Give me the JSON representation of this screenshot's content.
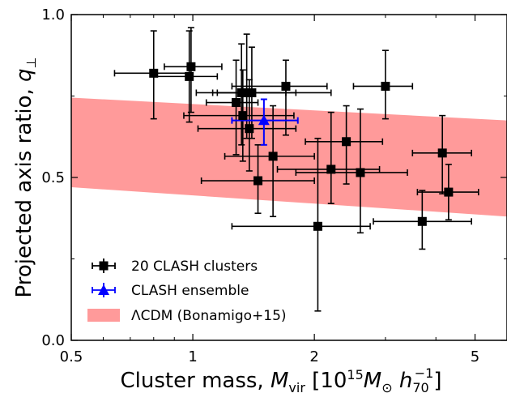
{
  "chart_data": {
    "type": "scatter",
    "xscale": "log",
    "xlim": [
      0.5,
      6.0
    ],
    "ylim": [
      0.0,
      1.0
    ],
    "xticks": [
      {
        "value": 0.5,
        "label": "0.5"
      },
      {
        "value": 1,
        "label": "1"
      },
      {
        "value": 2,
        "label": "2"
      },
      {
        "value": 5,
        "label": "5"
      }
    ],
    "yticks": [
      {
        "value": 0.0,
        "label": "0.0"
      },
      {
        "value": 0.5,
        "label": "0.5"
      },
      {
        "value": 1.0,
        "label": "1.0"
      }
    ],
    "xlabel": {
      "prefix": "Cluster mass, ",
      "var": "M",
      "var_sub": "vir",
      "units_open": " [10",
      "units_exp": "15",
      "units_m": "M",
      "units_msub": "⊙",
      "units_h": " h",
      "units_hsub": "70",
      "units_hsup": "−1",
      "units_close": "]"
    },
    "ylabel": {
      "prefix": "Projected axis ratio, ",
      "var": "q",
      "var_sub": "⊥"
    },
    "legend": {
      "placement": "lower-left",
      "entries": [
        {
          "label": "20 CLASH clusters",
          "marker": "square",
          "color": "#000000"
        },
        {
          "label": "CLASH ensemble",
          "marker": "triangle",
          "color": "#0000ff"
        },
        {
          "label": "ΛCDM (Bonamigo+15)",
          "marker": "band",
          "color": "#ff9a9a"
        }
      ]
    },
    "band": {
      "name": "ΛCDM (Bonamigo+15)",
      "color": "#ff9a9a",
      "x": [
        0.5,
        6.0
      ],
      "lower": [
        0.47,
        0.38
      ],
      "upper": [
        0.745,
        0.675
      ]
    },
    "series": [
      {
        "name": "20 CLASH clusters",
        "color": "#000000",
        "marker": "square",
        "points": [
          {
            "x": 0.8,
            "y": 0.82,
            "xerr": [
              0.64,
              0.98
            ],
            "yerr": [
              0.68,
              0.95
            ]
          },
          {
            "x": 0.98,
            "y": 0.81,
            "xerr": [
              0.8,
              1.15
            ],
            "yerr": [
              0.67,
              0.95
            ]
          },
          {
            "x": 0.99,
            "y": 0.84,
            "xerr": [
              0.85,
              1.18
            ],
            "yerr": [
              0.7,
              0.96
            ]
          },
          {
            "x": 1.28,
            "y": 0.73,
            "xerr": [
              1.08,
              1.45
            ],
            "yerr": [
              0.57,
              0.86
            ]
          },
          {
            "x": 1.32,
            "y": 0.76,
            "xerr": [
              1.02,
              1.7
            ],
            "yerr": [
              0.6,
              0.91
            ]
          },
          {
            "x": 1.33,
            "y": 0.69,
            "xerr": [
              0.95,
              1.78
            ],
            "yerr": [
              0.55,
              0.83
            ]
          },
          {
            "x": 1.36,
            "y": 0.76,
            "xerr": [
              1.12,
              1.8
            ],
            "yerr": [
              0.62,
              0.94
            ]
          },
          {
            "x": 1.4,
            "y": 0.76,
            "xerr": [
              1.15,
              2.2
            ],
            "yerr": [
              0.62,
              0.9
            ]
          },
          {
            "x": 1.38,
            "y": 0.65,
            "xerr": [
              1.03,
              1.8
            ],
            "yerr": [
              0.52,
              0.8
            ]
          },
          {
            "x": 1.7,
            "y": 0.78,
            "xerr": [
              1.25,
              2.15
            ],
            "yerr": [
              0.63,
              0.86
            ]
          },
          {
            "x": 1.58,
            "y": 0.565,
            "xerr": [
              1.2,
              2.0
            ],
            "yerr": [
              0.38,
              0.72
            ]
          },
          {
            "x": 1.45,
            "y": 0.49,
            "xerr": [
              1.05,
              2.0
            ],
            "yerr": [
              0.39,
              0.6
            ]
          },
          {
            "x": 2.04,
            "y": 0.35,
            "xerr": [
              1.25,
              2.75
            ],
            "yerr": [
              0.09,
              0.62
            ]
          },
          {
            "x": 2.2,
            "y": 0.525,
            "xerr": [
              1.62,
              2.9
            ],
            "yerr": [
              0.42,
              0.7
            ]
          },
          {
            "x": 2.4,
            "y": 0.61,
            "xerr": [
              1.9,
              2.95
            ],
            "yerr": [
              0.48,
              0.72
            ]
          },
          {
            "x": 2.6,
            "y": 0.515,
            "xerr": [
              1.8,
              3.4
            ],
            "yerr": [
              0.33,
              0.71
            ]
          },
          {
            "x": 3.0,
            "y": 0.78,
            "xerr": [
              2.5,
              3.5
            ],
            "yerr": [
              0.68,
              0.89
            ]
          },
          {
            "x": 3.7,
            "y": 0.365,
            "xerr": [
              2.8,
              4.9
            ],
            "yerr": [
              0.28,
              0.46
            ]
          },
          {
            "x": 4.15,
            "y": 0.575,
            "xerr": [
              3.5,
              4.9
            ],
            "yerr": [
              0.45,
              0.69
            ]
          },
          {
            "x": 4.3,
            "y": 0.455,
            "xerr": [
              3.6,
              5.1
            ],
            "yerr": [
              0.37,
              0.54
            ]
          }
        ]
      },
      {
        "name": "CLASH ensemble",
        "color": "#0000ff",
        "marker": "triangle",
        "points": [
          {
            "x": 1.5,
            "y": 0.675,
            "xerr": [
              1.25,
              1.82
            ],
            "yerr": [
              0.6,
              0.74
            ]
          }
        ]
      }
    ]
  }
}
